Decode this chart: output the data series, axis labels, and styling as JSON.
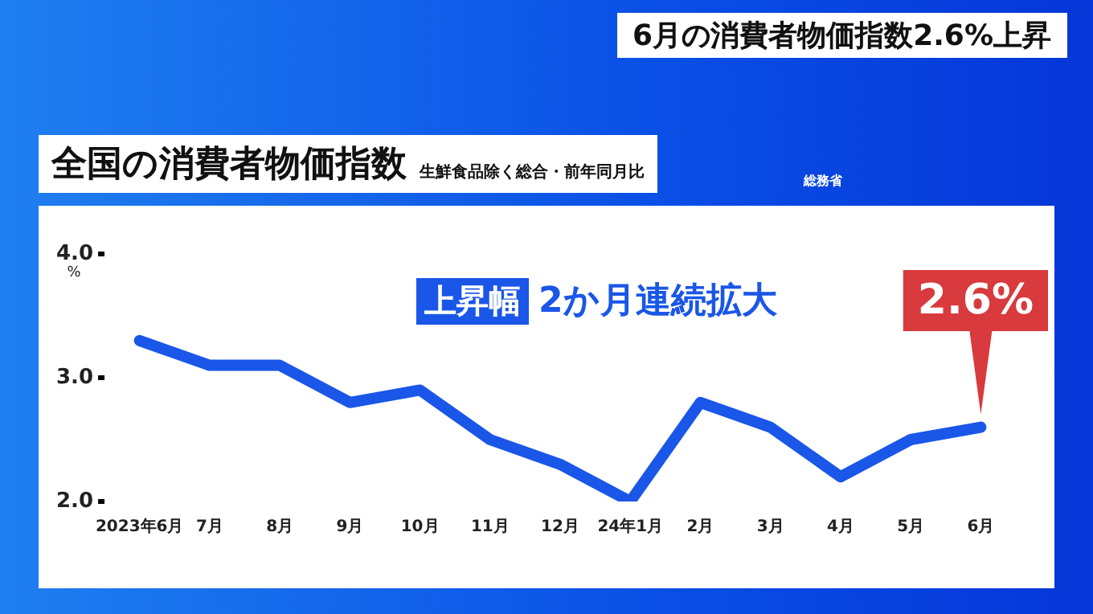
{
  "chart_data": {
    "type": "line",
    "title": "6月の消費者物価指数2.6%上昇",
    "subtitle": "全国の消費者物価指数",
    "ylabel": "%",
    "annotations": [
      "生鮮食品除く総合・前年同月比",
      "総務省",
      "上昇幅",
      "2か月連続拡大",
      {
        "text": "2.6%",
        "x": "6月",
        "y": 2.6
      }
    ],
    "categories": [
      "2023年6月",
      "7月",
      "8月",
      "9月",
      "10月",
      "11月",
      "12月",
      "24年1月",
      "2月",
      "3月",
      "4月",
      "5月",
      "6月"
    ],
    "series": [
      {
        "color": "#1a56e8",
        "values": [
          3.3,
          3.1,
          3.1,
          2.8,
          2.9,
          2.5,
          2.3,
          2.0,
          2.8,
          2.6,
          2.2,
          2.5,
          2.6
        ]
      }
    ],
    "ylim": [
      2,
      4
    ],
    "yticks": [
      {
        "value": 2,
        "label": "2.0"
      },
      {
        "value": 3,
        "label": "3.0"
      },
      {
        "value": 4,
        "label": "4.0"
      }
    ],
    "grid": false,
    "legend": false,
    "marker": "none",
    "line_style": "solid"
  }
}
